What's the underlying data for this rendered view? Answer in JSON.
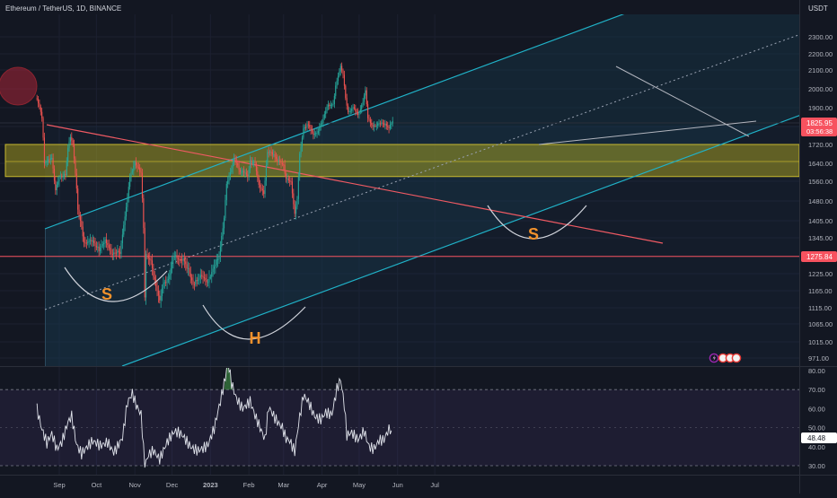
{
  "chart_data": [
    {
      "type": "line",
      "title": "Ethereum / TetherUS, 1D, BINANCE",
      "currency": "USDT",
      "price_ticks": [
        2300,
        2200,
        2100,
        2000,
        1900,
        1800,
        1720,
        1640,
        1560,
        1480,
        1405,
        1345,
        1275,
        1225,
        1165,
        1115,
        1065,
        1015,
        971
      ],
      "price_tick_labels": [
        "2300.00",
        "2200.00",
        "2100.00",
        "2000.00",
        "1900.00",
        "1800.00",
        "1720.00",
        "1640.00",
        "1560.00",
        "1480.00",
        "1405.00",
        "1345.00",
        "1275.00",
        "1225.00",
        "1165.00",
        "1115.00",
        "1065.00",
        "1015.00",
        "971.00"
      ],
      "months": [
        "Sep",
        "Oct",
        "Nov",
        "Dec",
        "2023",
        "Feb",
        "Mar",
        "Apr",
        "May",
        "Jun",
        "Jul"
      ],
      "close_path": [
        [
          "2022-08-14",
          1950
        ],
        [
          "2022-08-18",
          1850
        ],
        [
          "2022-08-20",
          1640
        ],
        [
          "2022-08-26",
          1660
        ],
        [
          "2022-08-29",
          1520
        ],
        [
          "2022-09-01",
          1580
        ],
        [
          "2022-09-06",
          1590
        ],
        [
          "2022-09-08",
          1710
        ],
        [
          "2022-09-10",
          1760
        ],
        [
          "2022-09-12",
          1720
        ],
        [
          "2022-09-14",
          1600
        ],
        [
          "2022-09-16",
          1450
        ],
        [
          "2022-09-19",
          1380
        ],
        [
          "2022-09-21",
          1320
        ],
        [
          "2022-09-24",
          1330
        ],
        [
          "2022-09-28",
          1330
        ],
        [
          "2022-10-03",
          1300
        ],
        [
          "2022-10-08",
          1340
        ],
        [
          "2022-10-13",
          1290
        ],
        [
          "2022-10-20",
          1290
        ],
        [
          "2022-10-25",
          1450
        ],
        [
          "2022-10-28",
          1580
        ],
        [
          "2022-11-01",
          1640
        ],
        [
          "2022-11-04",
          1620
        ],
        [
          "2022-11-06",
          1600
        ],
        [
          "2022-11-08",
          1380
        ],
        [
          "2022-11-09",
          1150
        ],
        [
          "2022-11-10",
          1290
        ],
        [
          "2022-11-14",
          1260
        ],
        [
          "2022-11-17",
          1200
        ],
        [
          "2022-11-21",
          1130
        ],
        [
          "2022-11-24",
          1190
        ],
        [
          "2022-11-28",
          1200
        ],
        [
          "2022-12-02",
          1280
        ],
        [
          "2022-12-06",
          1270
        ],
        [
          "2022-12-10",
          1270
        ],
        [
          "2022-12-15",
          1230
        ],
        [
          "2022-12-18",
          1185
        ],
        [
          "2022-12-24",
          1215
        ],
        [
          "2022-12-30",
          1195
        ],
        [
          "2023-01-04",
          1250
        ],
        [
          "2023-01-08",
          1280
        ],
        [
          "2023-01-12",
          1420
        ],
        [
          "2023-01-14",
          1550
        ],
        [
          "2023-01-16",
          1580
        ],
        [
          "2023-01-20",
          1660
        ],
        [
          "2023-01-25",
          1600
        ],
        [
          "2023-01-28",
          1600
        ],
        [
          "2023-01-31",
          1580
        ],
        [
          "2023-02-02",
          1650
        ],
        [
          "2023-02-06",
          1640
        ],
        [
          "2023-02-09",
          1550
        ],
        [
          "2023-02-13",
          1510
        ],
        [
          "2023-02-16",
          1690
        ],
        [
          "2023-02-20",
          1680
        ],
        [
          "2023-02-24",
          1650
        ],
        [
          "2023-03-01",
          1630
        ],
        [
          "2023-03-03",
          1570
        ],
        [
          "2023-03-07",
          1560
        ],
        [
          "2023-03-10",
          1430
        ],
        [
          "2023-03-12",
          1490
        ],
        [
          "2023-03-14",
          1680
        ],
        [
          "2023-03-17",
          1790
        ],
        [
          "2023-03-21",
          1810
        ],
        [
          "2023-03-25",
          1760
        ],
        [
          "2023-03-28",
          1770
        ],
        [
          "2023-04-01",
          1820
        ],
        [
          "2023-04-05",
          1910
        ],
        [
          "2023-04-10",
          1920
        ],
        [
          "2023-04-12",
          2020
        ],
        [
          "2023-04-16",
          2120
        ],
        [
          "2023-04-18",
          2080
        ],
        [
          "2023-04-20",
          1950
        ],
        [
          "2023-04-22",
          1870
        ],
        [
          "2023-04-26",
          1900
        ],
        [
          "2023-04-30",
          1860
        ],
        [
          "2023-05-03",
          1910
        ],
        [
          "2023-05-06",
          1990
        ],
        [
          "2023-05-08",
          1850
        ],
        [
          "2023-05-12",
          1800
        ],
        [
          "2023-05-17",
          1820
        ],
        [
          "2023-05-22",
          1810
        ],
        [
          "2023-05-25",
          1790
        ],
        [
          "2023-05-28",
          1826
        ]
      ],
      "current_price": "1825.95",
      "countdown": "03:56:38",
      "horizontal_level": "1275.84",
      "demand_zone": [
        1660,
        1720
      ],
      "pattern_labels": [
        "S",
        "H",
        "S"
      ]
    },
    {
      "type": "line",
      "ticks": [
        80,
        70,
        60,
        50,
        40,
        30
      ],
      "tick_labels": [
        "80.00",
        "70.00",
        "60.00",
        "50.00",
        "40.00",
        "30.00"
      ],
      "band": [
        30,
        70
      ],
      "current_value": "48.48",
      "values": [
        [
          "2022-08-14",
          60
        ],
        [
          "2022-08-18",
          48
        ],
        [
          "2022-08-22",
          40
        ],
        [
          "2022-08-26",
          45
        ],
        [
          "2022-08-30",
          38
        ],
        [
          "2022-09-03",
          43
        ],
        [
          "2022-09-08",
          55
        ],
        [
          "2022-09-11",
          58
        ],
        [
          "2022-09-15",
          42
        ],
        [
          "2022-09-19",
          36
        ],
        [
          "2022-09-23",
          38
        ],
        [
          "2022-09-28",
          41
        ],
        [
          "2022-10-04",
          40
        ],
        [
          "2022-10-10",
          44
        ],
        [
          "2022-10-15",
          39
        ],
        [
          "2022-10-22",
          45
        ],
        [
          "2022-10-26",
          62
        ],
        [
          "2022-10-30",
          66
        ],
        [
          "2022-11-02",
          60
        ],
        [
          "2022-11-06",
          56
        ],
        [
          "2022-11-09",
          30
        ],
        [
          "2022-11-12",
          37
        ],
        [
          "2022-11-16",
          40
        ],
        [
          "2022-11-21",
          35
        ],
        [
          "2022-11-27",
          42
        ],
        [
          "2022-12-03",
          46
        ],
        [
          "2022-12-09",
          45
        ],
        [
          "2022-12-16",
          41
        ],
        [
          "2022-12-22",
          40
        ],
        [
          "2022-12-30",
          41
        ],
        [
          "2023-01-04",
          48
        ],
        [
          "2023-01-09",
          62
        ],
        [
          "2023-01-13",
          75
        ],
        [
          "2023-01-15",
          85
        ],
        [
          "2023-01-18",
          74
        ],
        [
          "2023-01-22",
          67
        ],
        [
          "2023-01-27",
          62
        ],
        [
          "2023-02-02",
          64
        ],
        [
          "2023-02-06",
          55
        ],
        [
          "2023-02-10",
          48
        ],
        [
          "2023-02-14",
          42
        ],
        [
          "2023-02-17",
          60
        ],
        [
          "2023-02-22",
          56
        ],
        [
          "2023-02-28",
          52
        ],
        [
          "2023-03-03",
          46
        ],
        [
          "2023-03-06",
          44
        ],
        [
          "2023-03-10",
          37
        ],
        [
          "2023-03-13",
          50
        ],
        [
          "2023-03-17",
          65
        ],
        [
          "2023-03-21",
          62
        ],
        [
          "2023-03-26",
          56
        ],
        [
          "2023-03-31",
          56
        ],
        [
          "2023-04-04",
          60
        ],
        [
          "2023-04-09",
          58
        ],
        [
          "2023-04-13",
          70
        ],
        [
          "2023-04-16",
          74
        ],
        [
          "2023-04-19",
          60
        ],
        [
          "2023-04-21",
          44
        ],
        [
          "2023-04-25",
          46
        ],
        [
          "2023-04-30",
          44
        ],
        [
          "2023-05-05",
          50
        ],
        [
          "2023-05-09",
          42
        ],
        [
          "2023-05-13",
          40
        ],
        [
          "2023-05-17",
          43
        ],
        [
          "2023-05-21",
          42
        ],
        [
          "2023-05-24",
          46
        ],
        [
          "2023-05-27",
          48.48
        ]
      ]
    }
  ]
}
